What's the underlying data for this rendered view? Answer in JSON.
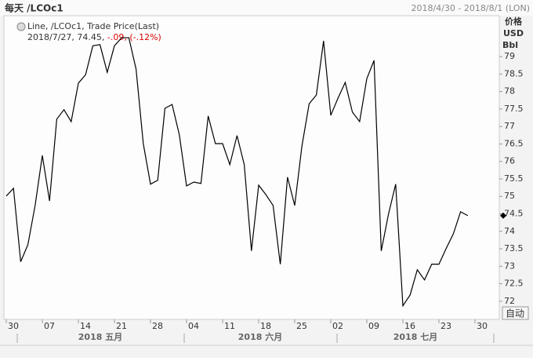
{
  "header": {
    "title": "每天 /LCOc1",
    "range": "2018/4/30 - 2018/8/1 (LON)",
    "button": "自动"
  },
  "legend": {
    "series": "Line, /LCOc1, Trade Price(Last)",
    "info": "2018/7/27, 74.45,",
    "change": "-.09, (-.12%)"
  },
  "chart_data": {
    "type": "line",
    "color": "#000000",
    "y_axis_label": [
      "价格",
      "USD",
      "Bbl"
    ],
    "months": [
      "2018 五月",
      "2018 六月",
      "2018 七月"
    ],
    "categories": [
      "30",
      null,
      null,
      null,
      null,
      "07",
      null,
      null,
      null,
      null,
      "14",
      null,
      null,
      null,
      null,
      "21",
      null,
      null,
      null,
      null,
      "28",
      null,
      null,
      null,
      null,
      "04",
      null,
      null,
      null,
      null,
      "11",
      null,
      null,
      null,
      null,
      "18",
      null,
      null,
      null,
      null,
      "25",
      null,
      null,
      null,
      null,
      "02",
      null,
      null,
      null,
      null,
      "09",
      null,
      null,
      null,
      null,
      "16",
      null,
      null,
      null,
      null,
      "23",
      null,
      null,
      null,
      null,
      "30"
    ],
    "values": [
      75.01,
      75.23,
      73.13,
      73.62,
      74.74,
      76.17,
      74.87,
      77.21,
      77.48,
      77.14,
      78.24,
      78.48,
      79.31,
      79.34,
      78.55,
      79.31,
      79.54,
      79.54,
      78.64,
      76.51,
      75.35,
      75.46,
      77.52,
      77.63,
      76.76,
      75.3,
      75.41,
      75.37,
      77.3,
      76.51,
      76.51,
      75.91,
      76.74,
      75.91,
      73.44,
      75.32,
      75.05,
      74.74,
      73.06,
      75.55,
      74.74,
      76.44,
      77.65,
      77.9,
      79.45,
      77.32,
      77.81,
      78.26,
      77.41,
      77.14,
      78.37,
      78.89,
      73.44,
      74.49,
      75.35,
      71.87,
      72.18,
      72.9,
      72.61,
      73.06,
      73.06,
      73.51,
      73.93,
      74.56,
      74.45,
      null
    ],
    "ylim": [
      71.48,
      80.17
    ],
    "yticks": [
      72,
      72.5,
      73,
      73.5,
      74,
      74.5,
      75,
      75.5,
      76,
      76.5,
      77,
      77.5,
      78,
      78.5,
      79
    ],
    "grid": false
  }
}
